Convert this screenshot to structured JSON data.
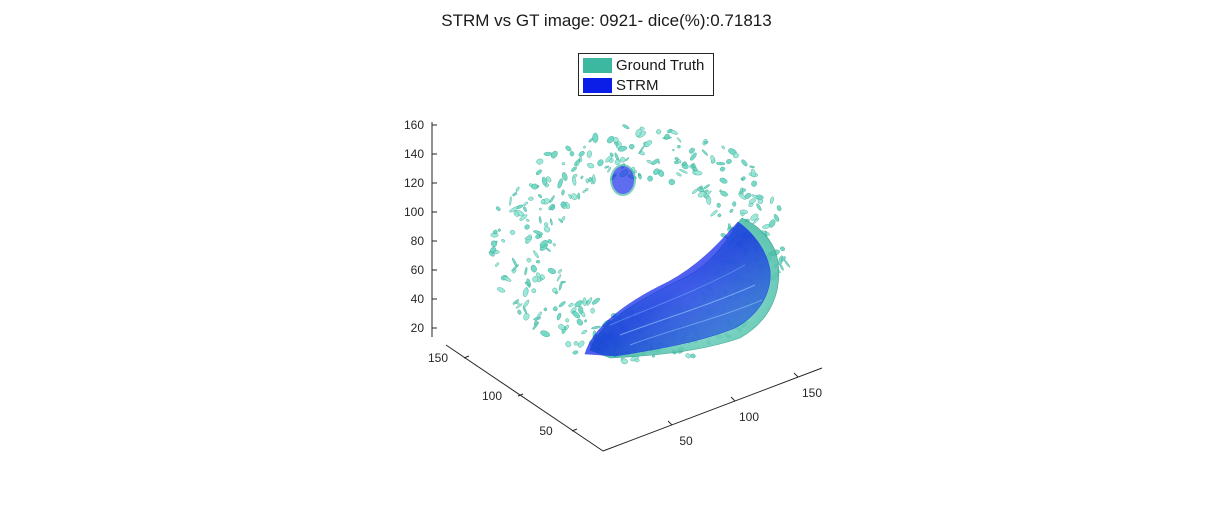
{
  "figure": {
    "title": "STRM vs GT image: 0921- dice(%):0.71813"
  },
  "legend": {
    "items": [
      {
        "label": "Ground Truth",
        "color": "#3cb8a0"
      },
      {
        "label": "STRM",
        "color": "#0a1ee8"
      }
    ]
  },
  "chart_data": {
    "type": "3d-isosurface",
    "title": "STRM vs GT image: 0921- dice(%):0.71813",
    "zlabel": "",
    "xlabel": "",
    "ylabel": "",
    "z_ticks": [
      "20",
      "40",
      "60",
      "80",
      "100",
      "120",
      "140",
      "160"
    ],
    "x_ticks": [
      "50",
      "100",
      "150"
    ],
    "y_ticks": [
      "50",
      "100",
      "150"
    ],
    "series": [
      {
        "name": "Ground Truth",
        "color": "#3cb8a0"
      },
      {
        "name": "STRM",
        "color": "#0a1ee8"
      }
    ],
    "dice": 0.71813,
    "legend": "top-center"
  }
}
